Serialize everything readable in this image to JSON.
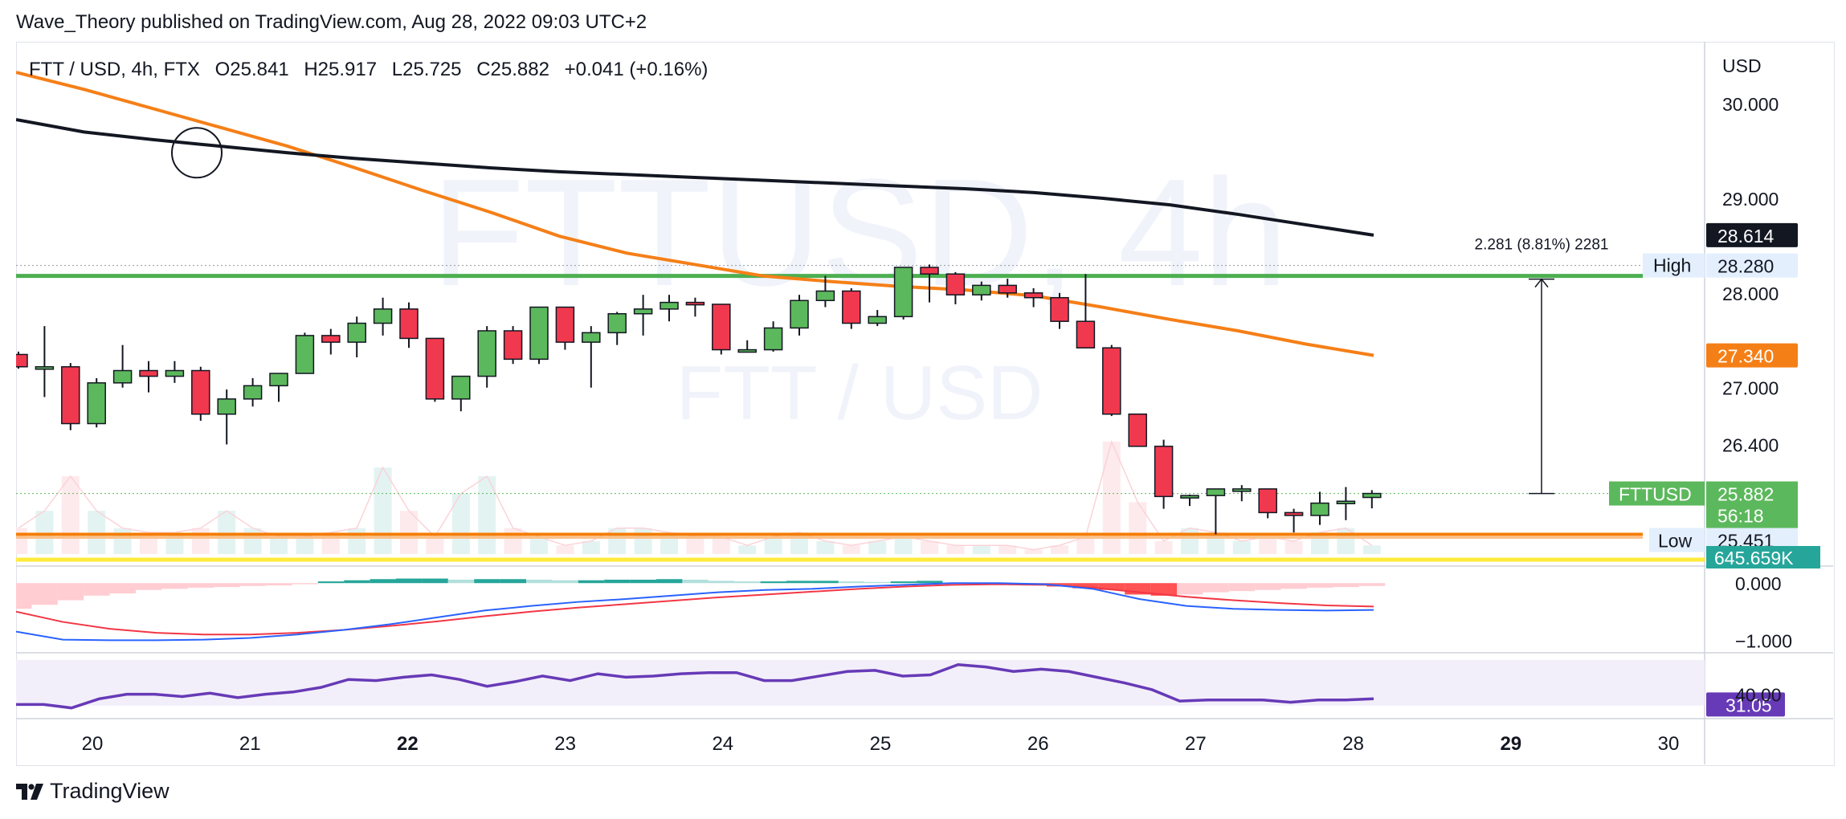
{
  "header": {
    "published_by": "Wave_Theory published on TradingView.com, Aug 28, 2022 09:03 UTC+2"
  },
  "footer": {
    "brand": "TradingView"
  },
  "watermark": {
    "big": "FTTUSD, 4h",
    "sub": "FTT / USD"
  },
  "colors": {
    "up": "#5cb85c",
    "down": "#f0394f",
    "ema_fast": "#f57f17",
    "ema_slow": "#131722",
    "resistance": "#4caf50",
    "support": "#f57c00",
    "volume_line": "#ffeb3b",
    "macd_line": "#2962ff",
    "signal_line": "#f23645",
    "rsi": "#673ab7",
    "rsi_band": "#f3effa"
  },
  "chart_data": {
    "type": "candlestick",
    "symbol": "FTT / USD",
    "interval": "4h",
    "exchange": "FTX",
    "ohlc_legend": {
      "o": "O25.841",
      "h": "H25.917",
      "l": "L25.725",
      "c": "C25.882",
      "chg": "+0.041 (+0.16%)"
    },
    "currency": "USD",
    "ylim": [
      25.2,
      30.35
    ],
    "price_ticks": [
      "30.000",
      "29.000",
      "28.000",
      "27.000",
      "26.400"
    ],
    "x_ticks": [
      {
        "label": "20",
        "bold": false
      },
      {
        "label": "21",
        "bold": false
      },
      {
        "label": "22",
        "bold": true
      },
      {
        "label": "23",
        "bold": false
      },
      {
        "label": "24",
        "bold": false
      },
      {
        "label": "25",
        "bold": false
      },
      {
        "label": "26",
        "bold": false
      },
      {
        "label": "27",
        "bold": false
      },
      {
        "label": "28",
        "bold": false
      },
      {
        "label": "29",
        "bold": true
      },
      {
        "label": "30",
        "bold": false
      }
    ],
    "candles": [
      [
        27.35,
        27.38,
        27.2,
        27.22
      ],
      [
        27.2,
        27.65,
        26.9,
        27.22
      ],
      [
        27.22,
        27.26,
        26.55,
        26.62
      ],
      [
        26.62,
        27.1,
        26.58,
        27.05
      ],
      [
        27.05,
        27.45,
        27.0,
        27.18
      ],
      [
        27.18,
        27.28,
        26.95,
        27.12
      ],
      [
        27.12,
        27.28,
        27.05,
        27.18
      ],
      [
        27.18,
        27.22,
        26.65,
        26.72
      ],
      [
        26.72,
        26.98,
        26.4,
        26.88
      ],
      [
        26.88,
        27.1,
        26.8,
        27.02
      ],
      [
        27.02,
        27.15,
        26.85,
        27.15
      ],
      [
        27.15,
        27.58,
        27.15,
        27.55
      ],
      [
        27.55,
        27.62,
        27.35,
        27.48
      ],
      [
        27.48,
        27.75,
        27.32,
        27.68
      ],
      [
        27.68,
        27.95,
        27.55,
        27.83
      ],
      [
        27.83,
        27.9,
        27.42,
        27.52
      ],
      [
        27.52,
        27.52,
        26.85,
        26.88
      ],
      [
        26.88,
        27.1,
        26.75,
        27.12
      ],
      [
        27.12,
        27.65,
        27.0,
        27.6
      ],
      [
        27.6,
        27.65,
        27.25,
        27.3
      ],
      [
        27.3,
        27.85,
        27.25,
        27.85
      ],
      [
        27.85,
        27.85,
        27.4,
        27.48
      ],
      [
        27.48,
        27.65,
        27.0,
        27.58
      ],
      [
        27.58,
        27.8,
        27.45,
        27.78
      ],
      [
        27.78,
        27.98,
        27.55,
        27.83
      ],
      [
        27.83,
        27.98,
        27.7,
        27.9
      ],
      [
        27.9,
        27.95,
        27.75,
        27.88
      ],
      [
        27.88,
        27.88,
        27.35,
        27.4
      ],
      [
        27.4,
        27.5,
        27.38,
        27.4
      ],
      [
        27.4,
        27.7,
        27.38,
        27.63
      ],
      [
        27.63,
        27.98,
        27.55,
        27.92
      ],
      [
        27.92,
        28.18,
        27.85,
        28.02
      ],
      [
        28.02,
        28.05,
        27.62,
        27.68
      ],
      [
        27.68,
        27.82,
        27.65,
        27.75
      ],
      [
        27.75,
        28.27,
        27.72,
        28.27
      ],
      [
        28.27,
        28.3,
        27.9,
        28.2
      ],
      [
        28.2,
        28.22,
        27.88,
        27.98
      ],
      [
        27.98,
        28.12,
        27.92,
        28.08
      ],
      [
        28.08,
        28.15,
        27.95,
        28.0
      ],
      [
        28.0,
        28.05,
        27.85,
        27.95
      ],
      [
        27.95,
        28.0,
        27.62,
        27.7
      ],
      [
        27.7,
        28.2,
        27.42,
        27.42
      ],
      [
        27.42,
        27.45,
        26.7,
        26.72
      ],
      [
        26.72,
        26.72,
        26.38,
        26.38
      ],
      [
        26.38,
        26.45,
        25.72,
        25.85
      ],
      [
        25.85,
        25.87,
        25.75,
        25.86
      ],
      [
        25.86,
        25.93,
        25.45,
        25.93
      ],
      [
        25.93,
        25.97,
        25.8,
        25.93
      ],
      [
        25.93,
        25.93,
        25.62,
        25.68
      ],
      [
        25.68,
        25.72,
        25.47,
        25.65
      ],
      [
        25.65,
        25.9,
        25.55,
        25.78
      ],
      [
        25.78,
        25.95,
        25.6,
        25.8
      ],
      [
        25.84,
        25.917,
        25.725,
        25.882
      ]
    ],
    "ema_fast": [
      30.33,
      30.15,
      29.95,
      29.75,
      29.55,
      29.32,
      29.08,
      28.85,
      28.6,
      28.42,
      28.3,
      28.18,
      28.12,
      28.07,
      28.03,
      27.97,
      27.85,
      27.72,
      27.6,
      27.46,
      27.34
    ],
    "ema_slow": [
      29.83,
      29.7,
      29.62,
      29.55,
      29.48,
      29.42,
      29.37,
      29.32,
      29.28,
      29.25,
      29.22,
      29.19,
      29.16,
      29.13,
      29.1,
      29.06,
      29.0,
      28.93,
      28.83,
      28.72,
      28.61
    ],
    "volume": [
      0.3,
      0.5,
      0.9,
      0.5,
      0.3,
      0.25,
      0.25,
      0.3,
      0.5,
      0.3,
      0.2,
      0.2,
      0.25,
      0.3,
      1.0,
      0.5,
      0.2,
      0.7,
      0.9,
      0.3,
      0.2,
      0.1,
      0.15,
      0.3,
      0.3,
      0.25,
      0.2,
      0.2,
      0.1,
      0.2,
      0.25,
      0.15,
      0.1,
      0.15,
      0.2,
      0.15,
      0.1,
      0.1,
      0.1,
      0.05,
      0.1,
      0.2,
      1.3,
      0.6,
      0.15,
      0.3,
      0.25,
      0.15,
      0.2,
      0.15,
      0.25,
      0.3,
      0.1
    ],
    "macd": {
      "ylim": [
        -1.15,
        0.2
      ],
      "ticks": [
        "0.000",
        "−1.000"
      ],
      "histogram": [
        -0.45,
        -0.38,
        -0.3,
        -0.22,
        -0.18,
        -0.12,
        -0.1,
        -0.08,
        -0.07,
        -0.05,
        -0.04,
        -0.02,
        0.03,
        0.05,
        0.07,
        0.08,
        0.08,
        0.06,
        0.07,
        0.07,
        0.06,
        0.05,
        0.05,
        0.06,
        0.06,
        0.07,
        0.06,
        0.04,
        0.03,
        0.03,
        0.04,
        0.04,
        0.03,
        0.02,
        0.03,
        0.04,
        0.01,
        0.0,
        -0.02,
        -0.04,
        -0.06,
        -0.09,
        -0.12,
        -0.2,
        -0.22,
        -0.2,
        -0.16,
        -0.14,
        -0.12,
        -0.1,
        -0.08,
        -0.07,
        -0.05
      ],
      "macd_line": [
        -0.85,
        -0.99,
        -1.0,
        -1.0,
        -0.99,
        -0.96,
        -0.9,
        -0.82,
        -0.72,
        -0.6,
        -0.48,
        -0.4,
        -0.33,
        -0.28,
        -0.22,
        -0.16,
        -0.12,
        -0.1,
        -0.06,
        -0.03,
        0.0,
        0.0,
        -0.02,
        -0.1,
        -0.28,
        -0.4,
        -0.45,
        -0.47,
        -0.48,
        -0.47
      ],
      "signal_line": [
        -0.5,
        -0.68,
        -0.8,
        -0.87,
        -0.9,
        -0.9,
        -0.87,
        -0.82,
        -0.75,
        -0.67,
        -0.58,
        -0.5,
        -0.43,
        -0.37,
        -0.31,
        -0.25,
        -0.2,
        -0.15,
        -0.1,
        -0.06,
        -0.03,
        -0.02,
        -0.03,
        -0.08,
        -0.16,
        -0.24,
        -0.3,
        -0.35,
        -0.39,
        -0.41
      ]
    },
    "rsi": {
      "ylim": [
        20,
        75
      ],
      "band": [
        30,
        70
      ],
      "last": "31.05",
      "ticks": [
        "40.00"
      ],
      "values": [
        31,
        31,
        28,
        36,
        40,
        40,
        38,
        41,
        37,
        40,
        42,
        46,
        53,
        52,
        55,
        57,
        53,
        47,
        51,
        56,
        52,
        58,
        55,
        56,
        58,
        59,
        59,
        52,
        52,
        56,
        60,
        61,
        56,
        57,
        66,
        64,
        60,
        62,
        60,
        55,
        50,
        44,
        34,
        35,
        35,
        35,
        33,
        35,
        35,
        36
      ]
    },
    "annotations": {
      "high_tag": "High",
      "high_price": "28.280",
      "low_tag": "Low",
      "low_price": "25.451",
      "measure_label": "2.281 (8.81%) 2281",
      "symbol_tag": "FTTUSD",
      "last_price": "25.882",
      "countdown": "56:18",
      "ema_slow_price": "28.614",
      "ema_fast_price": "27.340",
      "volume_tag": "645.659K",
      "resistance_price": 28.18,
      "support_price": 25.45
    }
  }
}
